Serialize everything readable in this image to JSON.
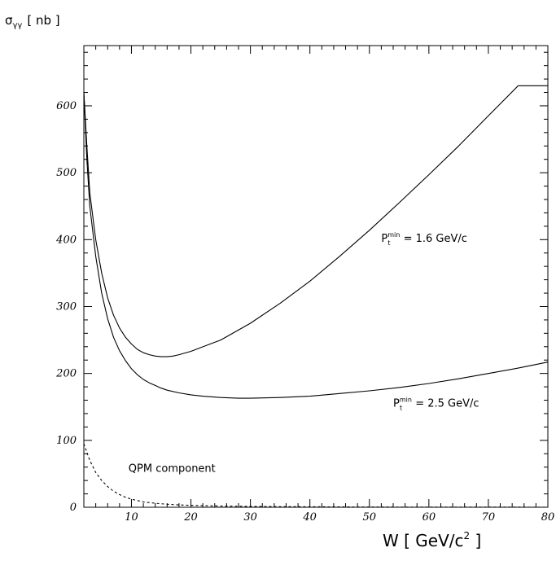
{
  "chart_data": {
    "type": "line",
    "ylabel": "σ",
    "ylabel_sub": "γγ",
    "ylabel_unit": "[ nb ]",
    "xlabel": "W [ GeV/c",
    "xlabel_sup": "2",
    "xlabel_close": " ]",
    "xlim": [
      2,
      80
    ],
    "ylim": [
      0,
      690
    ],
    "xticks": [
      10,
      20,
      30,
      40,
      50,
      60,
      70,
      80
    ],
    "yticks": [
      0,
      100,
      200,
      300,
      400,
      500,
      600
    ],
    "series": [
      {
        "label_prefix": "P",
        "label_sub": "t",
        "label_sup": "min",
        "label_value": " = 1.6 GeV/c",
        "dash": "none",
        "x": [
          2,
          2.5,
          3,
          4,
          5,
          6,
          7,
          8,
          9,
          10,
          11,
          12,
          13,
          14,
          15,
          16,
          17,
          18,
          20,
          25,
          30,
          35,
          40,
          45,
          50,
          55,
          60,
          65,
          70,
          75,
          80
        ],
        "y": [
          620,
          540,
          470,
          400,
          350,
          313,
          287,
          268,
          254,
          244,
          236,
          231,
          228,
          226,
          225,
          225,
          226,
          228,
          233,
          250,
          275,
          305,
          338,
          375,
          414,
          455,
          497,
          540,
          585,
          630,
          630
        ]
      },
      {
        "label_prefix": "P",
        "label_sub": "t",
        "label_sup": "min",
        "label_value": " = 2.5 GeV/c",
        "dash": "none",
        "x": [
          2,
          2.5,
          3,
          4,
          5,
          6,
          7,
          8,
          9,
          10,
          11,
          12,
          13,
          14,
          15,
          16,
          18,
          20,
          22,
          25,
          28,
          30,
          35,
          40,
          45,
          50,
          55,
          60,
          65,
          70,
          75,
          80
        ],
        "y": [
          620,
          520,
          450,
          375,
          320,
          282,
          254,
          234,
          219,
          207,
          198,
          191,
          186,
          182,
          178,
          175,
          171,
          168,
          166,
          164,
          163,
          163,
          164,
          166,
          170,
          174,
          179,
          185,
          192,
          200,
          208,
          217
        ]
      },
      {
        "label": "QPM component",
        "dash": "3,3",
        "x": [
          2,
          3,
          4,
          5,
          6,
          7,
          8,
          9,
          10,
          12,
          14,
          16,
          18,
          20,
          25,
          30,
          35,
          40,
          50,
          60,
          70,
          80
        ],
        "y": [
          95,
          70,
          52,
          40,
          31,
          24,
          19,
          15,
          12,
          8,
          6,
          4.5,
          3.5,
          2.8,
          1.8,
          1.2,
          0.9,
          0.7,
          0.4,
          0.3,
          0.2,
          0.15
        ]
      }
    ],
    "annotations": [
      {
        "series": 0,
        "at_x": 52,
        "at_y": 397
      },
      {
        "series": 1,
        "at_x": 54,
        "at_y": 150
      },
      {
        "series": 2,
        "at_x": 9.5,
        "at_y": 53
      }
    ]
  }
}
